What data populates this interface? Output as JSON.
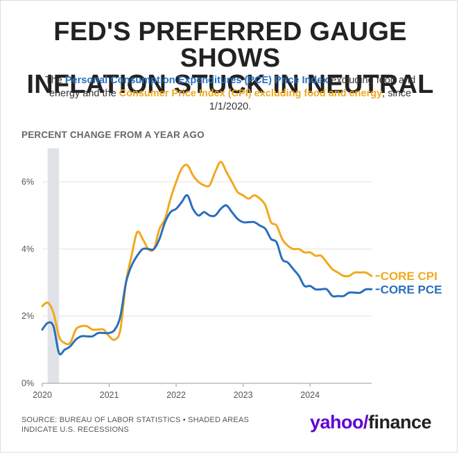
{
  "header": {
    "title_line1": "FED'S PREFERRED GAUGE SHOWS",
    "title_line2": "INFLATION STUCK IN NEUTRAL",
    "subtitle_part1": "The ",
    "subtitle_pce": "Personal Consumption Expenditures (PCE) Price Index",
    "subtitle_part2": " excluding food and energy and the ",
    "subtitle_cpi": "Consumer Price Index (CPI) excluding food and energy",
    "subtitle_part3": ", since 1/1/2020."
  },
  "footer": {
    "source": "SOURCE: BUREAU OF LABOR STATISTICS • SHADED AREAS INDICATE U.S. RECESSIONS",
    "logo_yahoo": "yahoo/",
    "logo_finance": "finance"
  },
  "colors": {
    "cpi": "#f2a81d",
    "pce": "#2a6ebd",
    "recession": "#dfe2e6",
    "grid": "#e2e2e2"
  },
  "chart_data": {
    "type": "line",
    "ylabel": "PERCENT CHANGE FROM A YEAR AGO",
    "xlabel": "",
    "ylim": [
      0,
      7
    ],
    "yticks": [
      0,
      2,
      4,
      6
    ],
    "ytick_labels": [
      "0%",
      "2%",
      "4%",
      "6%"
    ],
    "xlim": [
      2020.0,
      2024.92
    ],
    "xticks": [
      2020,
      2021,
      2022,
      2023,
      2024
    ],
    "xtick_labels": [
      "2020",
      "2021",
      "2022",
      "2023",
      "2024"
    ],
    "grid": true,
    "recession_shading": [
      [
        2020.08,
        2020.25
      ]
    ],
    "x": [
      "2020-01",
      "2020-02",
      "2020-03",
      "2020-04",
      "2020-05",
      "2020-06",
      "2020-07",
      "2020-08",
      "2020-09",
      "2020-10",
      "2020-11",
      "2020-12",
      "2021-01",
      "2021-02",
      "2021-03",
      "2021-04",
      "2021-05",
      "2021-06",
      "2021-07",
      "2021-08",
      "2021-09",
      "2021-10",
      "2021-11",
      "2021-12",
      "2022-01",
      "2022-02",
      "2022-03",
      "2022-04",
      "2022-05",
      "2022-06",
      "2022-07",
      "2022-08",
      "2022-09",
      "2022-10",
      "2022-11",
      "2022-12",
      "2023-01",
      "2023-02",
      "2023-03",
      "2023-04",
      "2023-05",
      "2023-06",
      "2023-07",
      "2023-08",
      "2023-09",
      "2023-10",
      "2023-11",
      "2023-12",
      "2024-01",
      "2024-02",
      "2024-03",
      "2024-04",
      "2024-05",
      "2024-06",
      "2024-07",
      "2024-08",
      "2024-09",
      "2024-10",
      "2024-11",
      "2024-12"
    ],
    "series": [
      {
        "name": "CORE CPI",
        "color": "#f2a81d",
        "values": [
          2.3,
          2.4,
          2.1,
          1.4,
          1.2,
          1.2,
          1.6,
          1.7,
          1.7,
          1.6,
          1.6,
          1.6,
          1.4,
          1.3,
          1.6,
          3.0,
          3.8,
          4.5,
          4.3,
          4.0,
          4.0,
          4.6,
          4.9,
          5.5,
          6.0,
          6.4,
          6.5,
          6.2,
          6.0,
          5.9,
          5.9,
          6.3,
          6.6,
          6.3,
          6.0,
          5.7,
          5.6,
          5.5,
          5.6,
          5.5,
          5.3,
          4.8,
          4.7,
          4.3,
          4.1,
          4.0,
          4.0,
          3.9,
          3.9,
          3.8,
          3.8,
          3.6,
          3.4,
          3.3,
          3.2,
          3.2,
          3.3,
          3.3,
          3.3,
          3.2
        ]
      },
      {
        "name": "CORE PCE",
        "color": "#2a6ebd",
        "values": [
          1.6,
          1.8,
          1.7,
          0.9,
          1.0,
          1.1,
          1.3,
          1.4,
          1.4,
          1.4,
          1.5,
          1.5,
          1.5,
          1.6,
          2.0,
          3.0,
          3.5,
          3.8,
          4.0,
          4.0,
          4.0,
          4.3,
          4.8,
          5.1,
          5.2,
          5.4,
          5.6,
          5.2,
          5.0,
          5.1,
          5.0,
          5.0,
          5.2,
          5.3,
          5.1,
          4.9,
          4.8,
          4.8,
          4.8,
          4.7,
          4.6,
          4.3,
          4.2,
          3.7,
          3.6,
          3.4,
          3.2,
          2.9,
          2.9,
          2.8,
          2.8,
          2.8,
          2.6,
          2.6,
          2.6,
          2.7,
          2.7,
          2.7,
          2.8,
          2.8
        ]
      }
    ]
  }
}
